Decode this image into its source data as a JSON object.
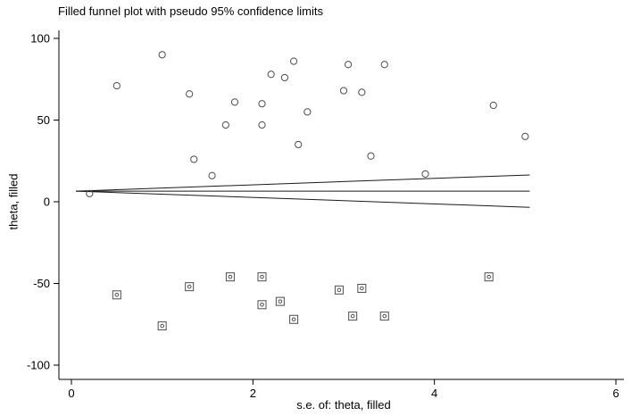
{
  "chart_data": {
    "type": "scatter",
    "title": "Filled funnel plot with pseudo 95% confidence limits",
    "xlabel": "s.e. of: theta, filled",
    "ylabel": "theta, filled",
    "xlim": [
      0,
      6
    ],
    "ylim": [
      -100,
      100
    ],
    "xticks": [
      0,
      2,
      4,
      6
    ],
    "yticks": [
      -100,
      -50,
      0,
      50,
      100
    ],
    "grid": false,
    "legend": "none",
    "series": [
      {
        "name": "observed-studies",
        "marker": "open-circle",
        "points": [
          [
            0.2,
            5
          ],
          [
            0.5,
            71
          ],
          [
            1.0,
            90
          ],
          [
            1.3,
            66
          ],
          [
            1.35,
            26
          ],
          [
            1.55,
            16
          ],
          [
            1.7,
            47
          ],
          [
            1.8,
            61
          ],
          [
            2.1,
            47
          ],
          [
            2.1,
            60
          ],
          [
            2.2,
            78
          ],
          [
            2.35,
            76
          ],
          [
            2.45,
            86
          ],
          [
            2.5,
            35
          ],
          [
            2.6,
            55
          ],
          [
            3.0,
            68
          ],
          [
            3.05,
            84
          ],
          [
            3.2,
            67
          ],
          [
            3.3,
            28
          ],
          [
            3.45,
            84
          ],
          [
            3.9,
            17
          ],
          [
            4.65,
            59
          ],
          [
            5.0,
            40
          ]
        ]
      },
      {
        "name": "imputed-filled-studies",
        "marker": "square-with-dot",
        "points": [
          [
            0.5,
            -57
          ],
          [
            1.0,
            -76
          ],
          [
            1.3,
            -52
          ],
          [
            1.75,
            -46
          ],
          [
            2.1,
            -46
          ],
          [
            2.1,
            -63
          ],
          [
            2.3,
            -61
          ],
          [
            2.45,
            -72
          ],
          [
            2.95,
            -54
          ],
          [
            3.1,
            -70
          ],
          [
            3.2,
            -53
          ],
          [
            3.45,
            -70
          ],
          [
            4.6,
            -46
          ]
        ]
      }
    ],
    "lines": [
      {
        "name": "pooled-estimate-line",
        "x": [
          0.05,
          5.05
        ],
        "y": [
          6.5,
          6.5
        ]
      },
      {
        "name": "upper-pseudo-95-limit",
        "x": [
          0.05,
          5.05
        ],
        "y": [
          6.5,
          16.4
        ]
      },
      {
        "name": "lower-pseudo-95-limit",
        "x": [
          0.05,
          5.05
        ],
        "y": [
          6.5,
          -3.4
        ]
      }
    ],
    "colors": {
      "axis": "#000000",
      "marker": "#4d4d4d",
      "line": "#1a1a1a",
      "background": "#ffffff"
    }
  }
}
